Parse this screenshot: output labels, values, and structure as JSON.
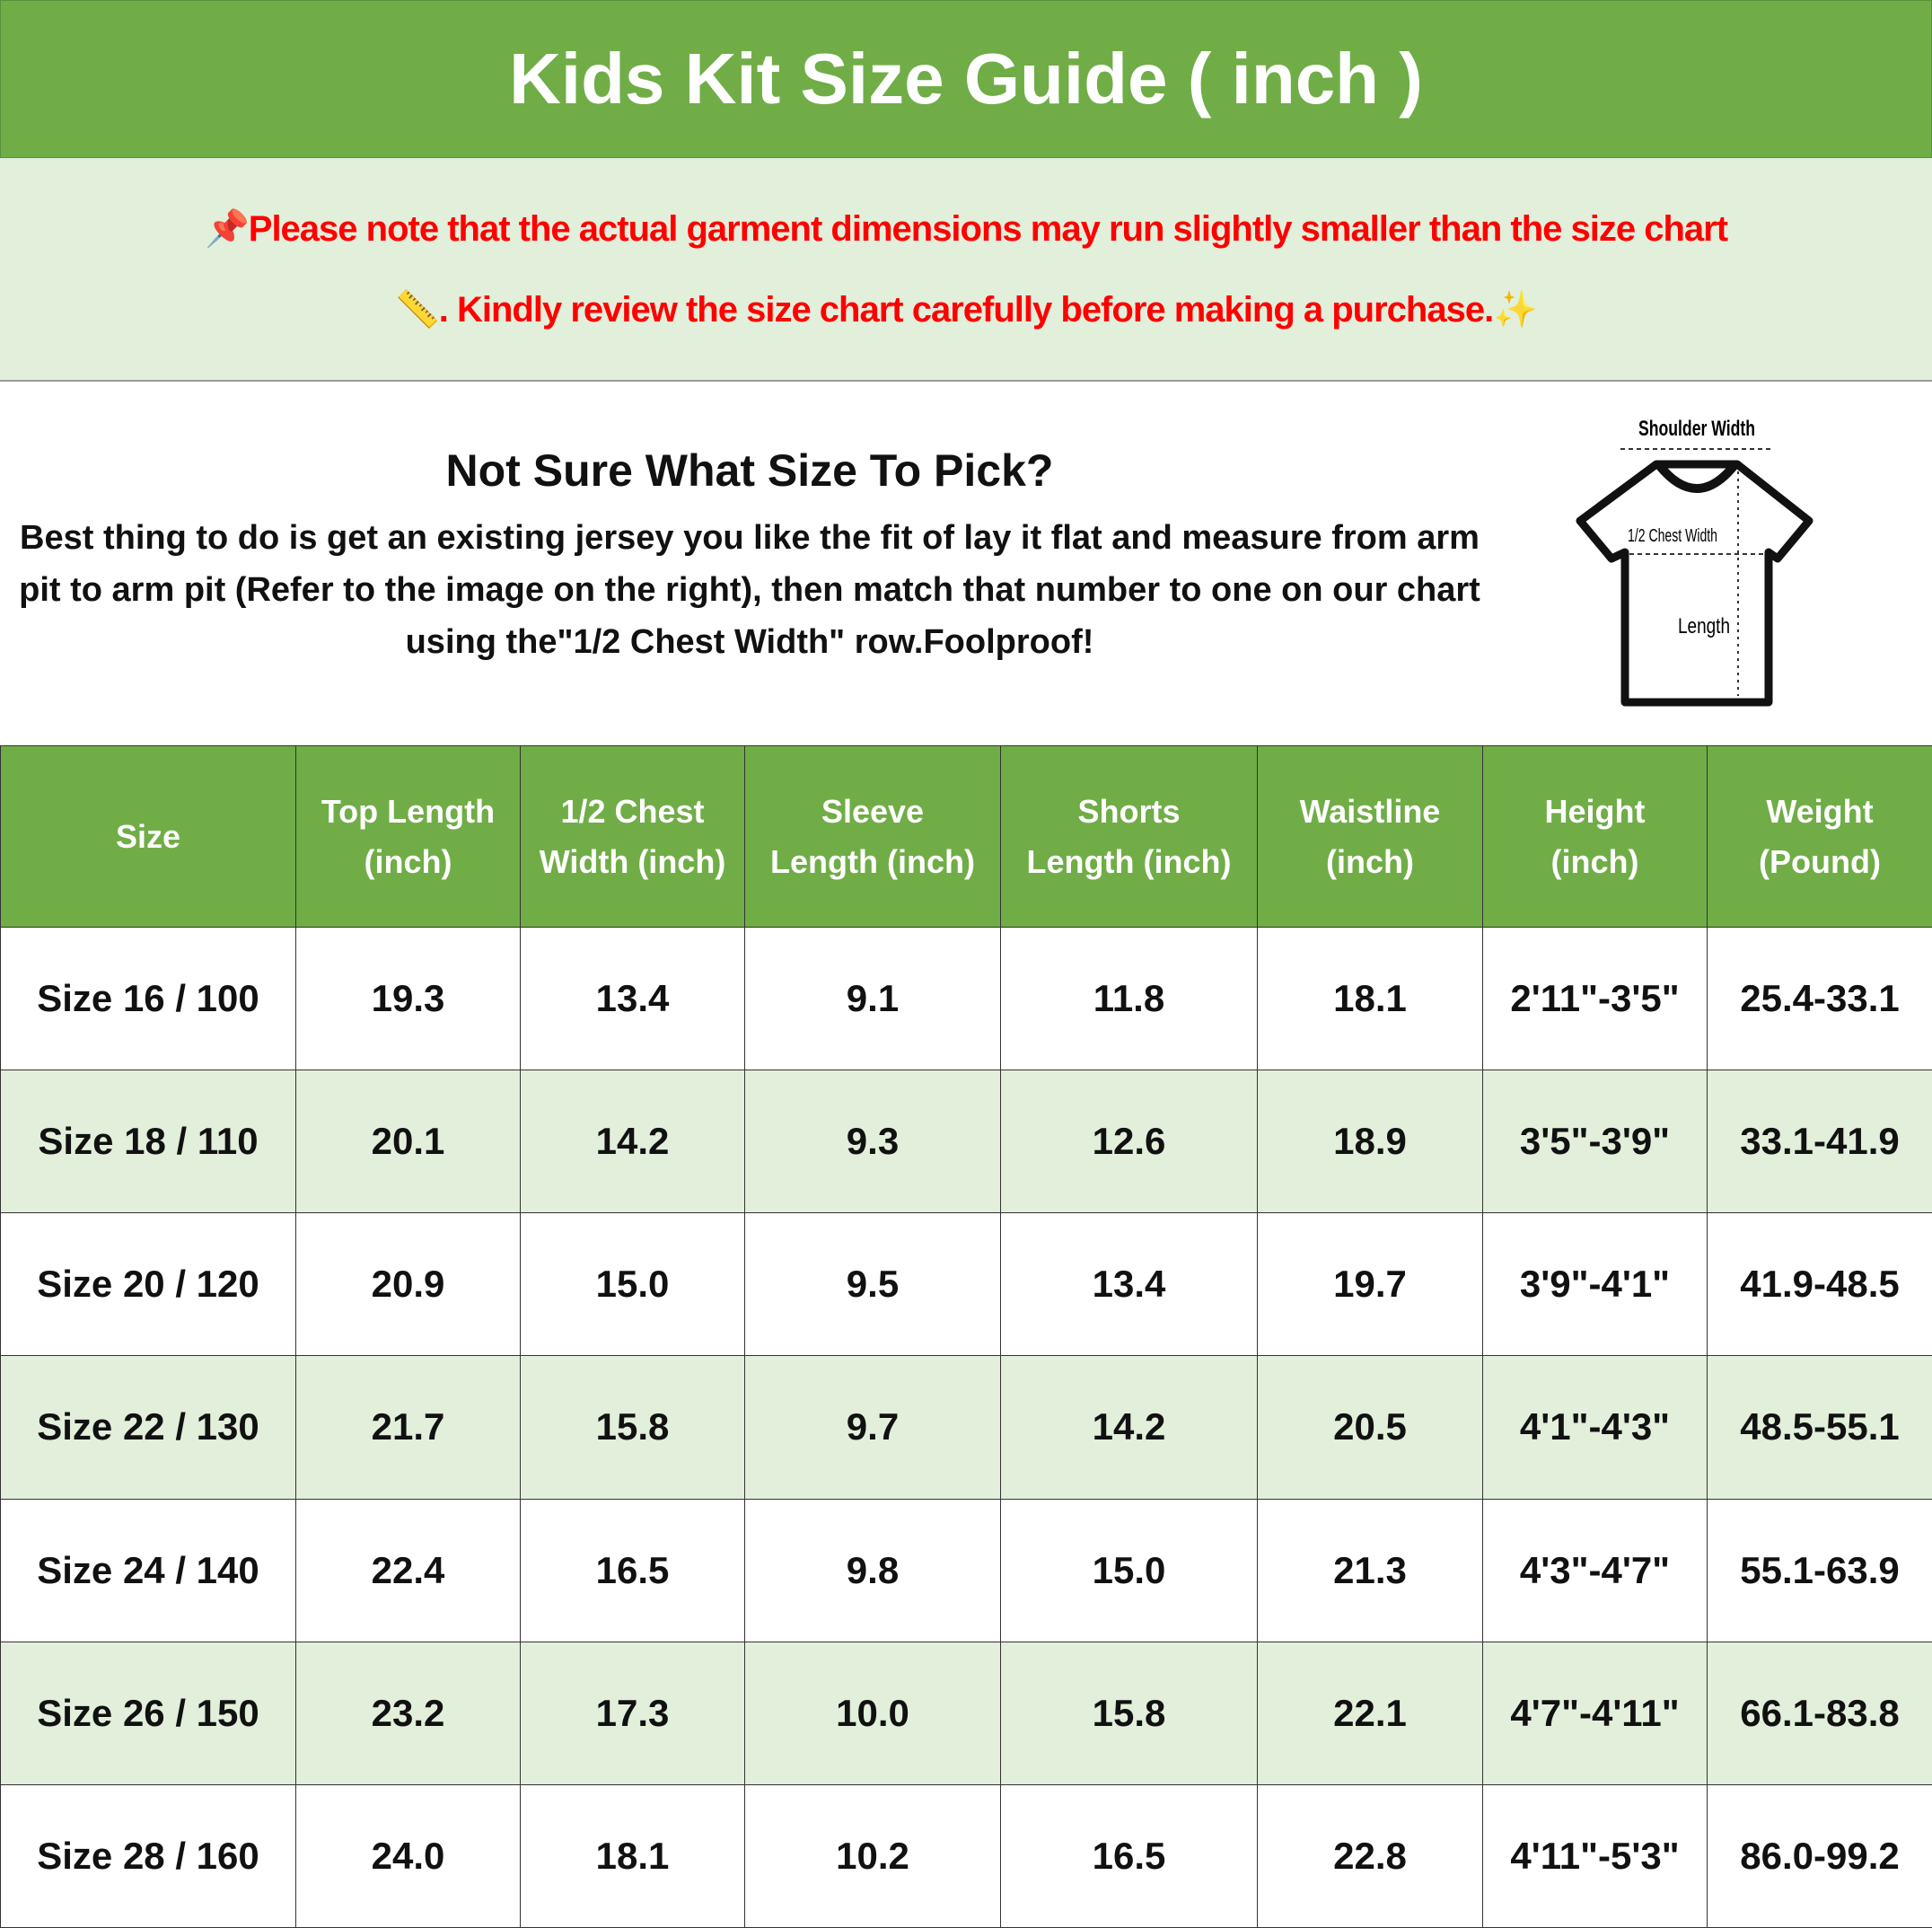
{
  "title": "Kids Kit Size Guide ( inch )",
  "notice": {
    "line1": "Please note that the actual garment dimensions may run slightly smaller than the size chart",
    "line2": ". Kindly review the size chart carefully before making a purchase.",
    "icons": [
      "pushpin-icon",
      "ruler-icon",
      "sparkles-icon"
    ],
    "color": "#ff0000"
  },
  "info": {
    "heading": "Not Sure What Size To Pick?",
    "body": "Best thing to do is get an existing jersey you like the fit of lay it flat and measure from arm pit to arm pit (Refer to the image on the right), then match that number to one on our chart using the\"1/2 Chest Width\" row.Foolproof!"
  },
  "diagram": {
    "shoulder": "Shoulder Width",
    "chest": "1/2 Chest Width",
    "length": "Length"
  },
  "colors": {
    "header": "#70ad47",
    "alt_row": "#e2efda"
  },
  "table": {
    "headers": [
      [
        "Size",
        ""
      ],
      [
        "Top Length",
        "(inch)"
      ],
      [
        "1/2 Chest",
        "Width (inch)"
      ],
      [
        "Sleeve",
        "Length (inch)"
      ],
      [
        "Shorts",
        "Length (inch)"
      ],
      [
        "Waistline",
        "(inch)"
      ],
      [
        "Height",
        "(inch)"
      ],
      [
        "Weight",
        "(Pound)"
      ]
    ],
    "rows": [
      [
        "Size 16 / 100",
        "19.3",
        "13.4",
        "9.1",
        "11.8",
        "18.1",
        "2'11\"-3'5\"",
        "25.4-33.1"
      ],
      [
        "Size 18 / 110",
        "20.1",
        "14.2",
        "9.3",
        "12.6",
        "18.9",
        "3'5\"-3'9\"",
        "33.1-41.9"
      ],
      [
        "Size 20 / 120",
        "20.9",
        "15.0",
        "9.5",
        "13.4",
        "19.7",
        "3'9\"-4'1\"",
        "41.9-48.5"
      ],
      [
        "Size 22 / 130",
        "21.7",
        "15.8",
        "9.7",
        "14.2",
        "20.5",
        "4'1\"-4'3\"",
        "48.5-55.1"
      ],
      [
        "Size 24 / 140",
        "22.4",
        "16.5",
        "9.8",
        "15.0",
        "21.3",
        "4'3\"-4'7\"",
        "55.1-63.9"
      ],
      [
        "Size 26 / 150",
        "23.2",
        "17.3",
        "10.0",
        "15.8",
        "22.1",
        "4'7\"-4'11\"",
        "66.1-83.8"
      ],
      [
        "Size 28 / 160",
        "24.0",
        "18.1",
        "10.2",
        "16.5",
        "22.8",
        "4'11\"-5'3\"",
        "86.0-99.2"
      ]
    ]
  }
}
